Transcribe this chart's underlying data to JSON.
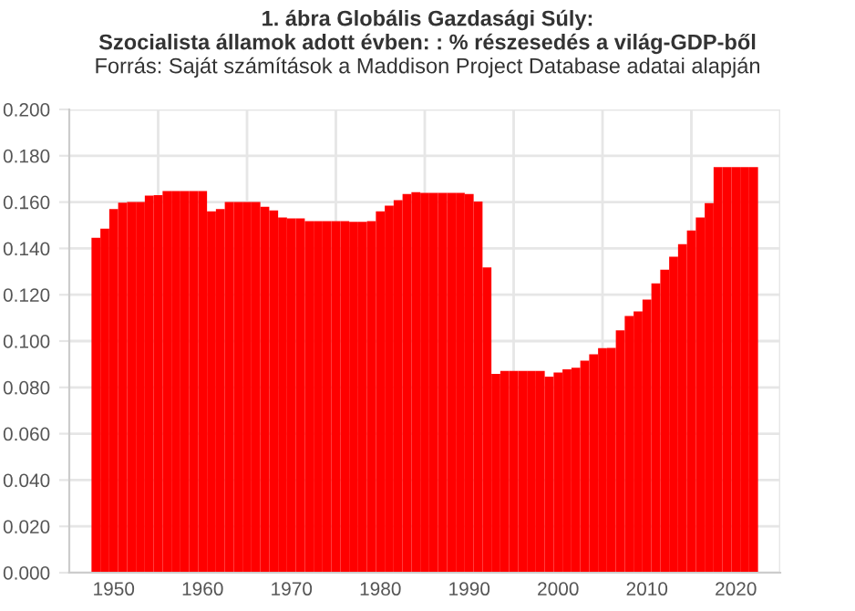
{
  "chart_data": {
    "type": "bar",
    "title": "1. ábra Globális Gazdasági Súly:",
    "subtitle": "Szocialista államok adott évben: : % részesedés a világ-GDP-ből",
    "annotations": [
      "Forrás: Saját számítások a Maddison Project Database adatai alapján"
    ],
    "x": [
      1948,
      1949,
      1950,
      1951,
      1952,
      1953,
      1954,
      1955,
      1956,
      1957,
      1958,
      1959,
      1960,
      1961,
      1962,
      1963,
      1964,
      1965,
      1966,
      1967,
      1968,
      1969,
      1970,
      1971,
      1972,
      1973,
      1974,
      1975,
      1976,
      1977,
      1978,
      1979,
      1980,
      1981,
      1982,
      1983,
      1984,
      1985,
      1986,
      1987,
      1988,
      1989,
      1990,
      1991,
      1992,
      1993,
      1994,
      1995,
      1996,
      1997,
      1998,
      1999,
      2000,
      2001,
      2002,
      2003,
      2004,
      2005,
      2006,
      2007,
      2008,
      2009,
      2010,
      2011,
      2012,
      2013,
      2014,
      2015,
      2016,
      2017,
      2018,
      2019,
      2020,
      2021,
      2022
    ],
    "values": [
      0.1446,
      0.1485,
      0.157,
      0.1597,
      0.16,
      0.16,
      0.1628,
      0.163,
      0.1648,
      0.1648,
      0.1648,
      0.1648,
      0.1648,
      0.156,
      0.157,
      0.16,
      0.16,
      0.16,
      0.16,
      0.158,
      0.1564,
      0.1533,
      0.153,
      0.153,
      0.1518,
      0.1518,
      0.1518,
      0.1518,
      0.1518,
      0.1515,
      0.1515,
      0.1518,
      0.156,
      0.1585,
      0.1608,
      0.1635,
      0.1643,
      0.164,
      0.164,
      0.164,
      0.164,
      0.164,
      0.1635,
      0.1602,
      0.1318,
      0.0858,
      0.0871,
      0.0871,
      0.0871,
      0.0871,
      0.0871,
      0.0846,
      0.0864,
      0.0878,
      0.0885,
      0.0915,
      0.0943,
      0.0969,
      0.097,
      0.1046,
      0.1108,
      0.1128,
      0.1179,
      0.1249,
      0.1308,
      0.1364,
      0.1418,
      0.1477,
      0.1533,
      0.1595,
      0.1751,
      0.1751,
      0.1751,
      0.1751,
      0.1751
    ],
    "color": "#ff0000",
    "xlim": [
      1945,
      2025
    ],
    "xticks": [
      1950,
      {
        "value": 1955,
        "label": null
      },
      1960,
      {
        "value": 1965,
        "label": null
      },
      1970,
      {
        "value": 1975,
        "label": null
      },
      1980,
      {
        "value": 1985,
        "label": null
      },
      1990,
      {
        "value": 1995,
        "label": null
      },
      2000,
      {
        "value": 2005,
        "label": null
      },
      2010,
      {
        "value": 2015,
        "label": null
      },
      2020,
      {
        "value": 2025,
        "label": null
      }
    ],
    "ylim": [
      0,
      0.2
    ],
    "yticks": [
      {
        "value": 0,
        "label": "0.000"
      },
      {
        "value": 0.02,
        "label": "0.020"
      },
      {
        "value": 0.04,
        "label": "0.040"
      },
      {
        "value": 0.06,
        "label": "0.060"
      },
      {
        "value": 0.08,
        "label": "0.080"
      },
      {
        "value": 0.1,
        "label": "0.100"
      },
      {
        "value": 0.12,
        "label": "0.120"
      },
      {
        "value": 0.14,
        "label": "0.140"
      },
      {
        "value": 0.16,
        "label": "0.160"
      },
      {
        "value": 0.18,
        "label": "0.180"
      },
      {
        "value": 0.2,
        "label": "0.200"
      }
    ],
    "grid": true
  }
}
